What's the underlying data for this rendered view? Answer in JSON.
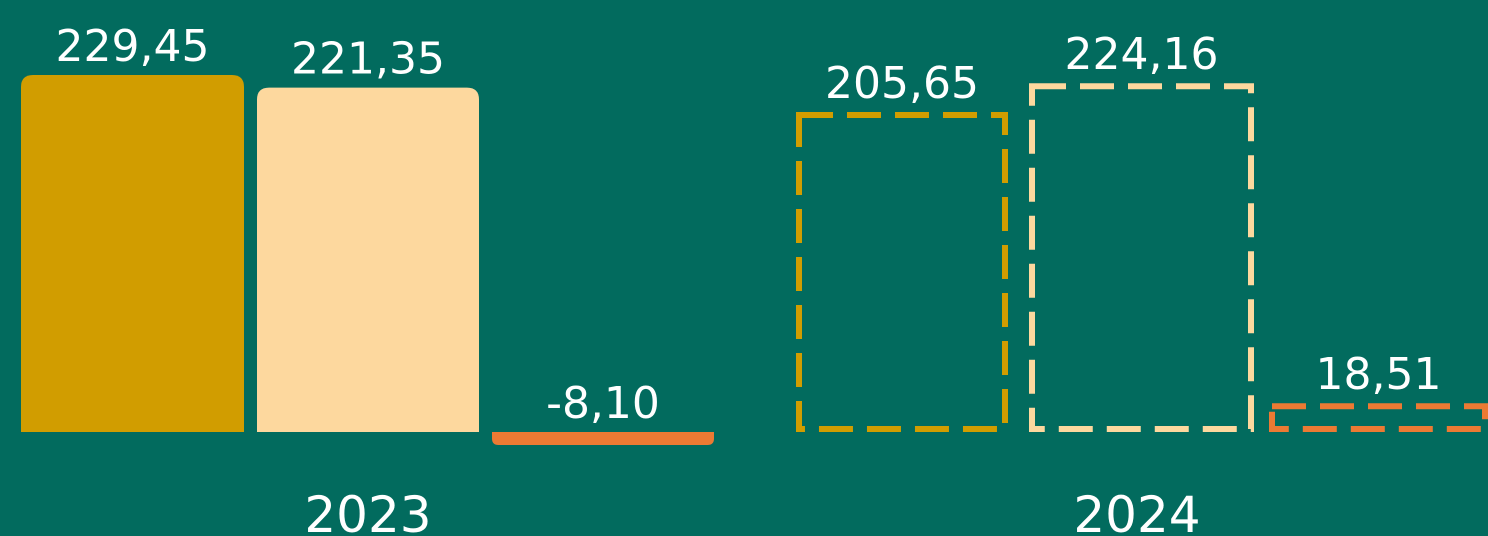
{
  "chart_data": {
    "type": "bar",
    "categories": [
      "2023",
      "2024"
    ],
    "bars": [
      {
        "category": "2023",
        "value": 229.45,
        "label": "229,45",
        "color": "#d19d00",
        "style": "solid"
      },
      {
        "category": "2023",
        "value": 221.35,
        "label": "221,35",
        "color": "#fdd89e",
        "style": "solid"
      },
      {
        "category": "2023",
        "value": -8.1,
        "label": "-8,10",
        "color": "#ec7a33",
        "style": "solid"
      },
      {
        "category": "2024",
        "value": 205.65,
        "label": "205,65",
        "color": "#d19d00",
        "style": "dashed"
      },
      {
        "category": "2024",
        "value": 224.16,
        "label": "224,16",
        "color": "#fdd89e",
        "style": "dashed"
      },
      {
        "category": "2024",
        "value": 18.51,
        "label": "18,51",
        "color": "#ec7a33",
        "style": "dashed"
      }
    ],
    "background": "#026b5e",
    "text_color": "#ffffff",
    "title": "",
    "xlabel": "",
    "ylabel": "",
    "grid": false,
    "legend": "none"
  }
}
